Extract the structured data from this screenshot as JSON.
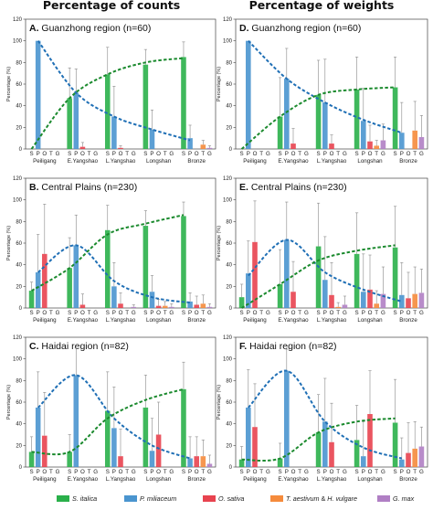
{
  "column_titles": [
    "Percentage of counts",
    "Percentage of weights"
  ],
  "crops_legend": [
    {
      "key": "S",
      "label": "S. italica",
      "color": "#2ab04a"
    },
    {
      "key": "P",
      "label": "P. miliaceum",
      "color": "#4a95cf"
    },
    {
      "key": "O",
      "label": "O. sativa",
      "color": "#e8434f"
    },
    {
      "key": "T",
      "label_parts": [
        "T. aestivum",
        " & ",
        "H. vulgare"
      ],
      "color": "#f58b3c"
    },
    {
      "key": "G",
      "label": "G. max",
      "color": "#b07fc4"
    }
  ],
  "trend_colors": {
    "P": "#1f6fb5",
    "S": "#1b8a2e"
  },
  "ylabel": "Percentage (%)",
  "crop_letters": [
    "S",
    "P",
    "O",
    "T",
    "G"
  ],
  "chart_data": [
    {
      "type": "bar",
      "letter": "A.",
      "title": "Guanzhong region (n=60)",
      "ylim": [
        0,
        120
      ],
      "yticks": [
        0,
        20,
        40,
        60,
        80,
        100,
        120
      ],
      "categories": [
        "Peiligang",
        "E.Yangshao",
        "L.Yangshao",
        "Longshan",
        "Bronze"
      ],
      "series": [
        {
          "name": "S. italica",
          "values": [
            0,
            47,
            69,
            78,
            85
          ],
          "errors": [
            0,
            28,
            25,
            14,
            14
          ]
        },
        {
          "name": "P. miliaceum",
          "values": [
            100,
            52,
            30,
            18,
            10
          ],
          "errors": [
            0,
            22,
            28,
            18,
            12
          ]
        },
        {
          "name": "O. sativa",
          "values": [
            0,
            2,
            1,
            0,
            0
          ],
          "errors": [
            0,
            4,
            2,
            0,
            0
          ]
        },
        {
          "name": "T. aestivum & H. vulgare",
          "values": [
            0,
            0,
            0,
            0,
            4
          ],
          "errors": [
            0,
            0,
            0,
            0,
            4
          ]
        },
        {
          "name": "G. max",
          "values": [
            0,
            0,
            0,
            0,
            1
          ],
          "errors": [
            0,
            0,
            0,
            0,
            2
          ]
        }
      ],
      "trends": {
        "P": [
          100,
          52,
          30,
          18,
          8
        ],
        "S": [
          0,
          47,
          69,
          80,
          84
        ]
      }
    },
    {
      "type": "bar",
      "letter": "D.",
      "title": "Guanzhong region (n=60)",
      "ylim": [
        0,
        120
      ],
      "yticks": [
        0,
        20,
        40,
        60,
        80,
        100,
        120
      ],
      "categories": [
        "Peiligang",
        "E.Yangshao",
        "L.Yangshao",
        "Longshan",
        "Bronze"
      ],
      "series": [
        {
          "name": "S. italica",
          "values": [
            0,
            30,
            50,
            55,
            57
          ],
          "errors": [
            0,
            36,
            32,
            30,
            28
          ]
        },
        {
          "name": "P. miliaceum",
          "values": [
            100,
            65,
            43,
            26,
            15
          ],
          "errors": [
            0,
            28,
            40,
            30,
            28
          ]
        },
        {
          "name": "O. sativa",
          "values": [
            0,
            5,
            5,
            7,
            0
          ],
          "errors": [
            0,
            14,
            8,
            15,
            0
          ]
        },
        {
          "name": "T. aestivum & H. vulgare",
          "values": [
            0,
            0,
            0,
            3,
            17
          ],
          "errors": [
            0,
            0,
            0,
            5,
            27
          ]
        },
        {
          "name": "G. max",
          "values": [
            0,
            0,
            0,
            8,
            11
          ],
          "errors": [
            0,
            0,
            0,
            15,
            20
          ]
        }
      ],
      "trends": {
        "P": [
          100,
          65,
          43,
          27,
          15
        ],
        "S": [
          0,
          30,
          50,
          55,
          57
        ]
      }
    },
    {
      "type": "bar",
      "letter": "B.",
      "title": "Central Plains (n=230)",
      "ylim": [
        0,
        120
      ],
      "yticks": [
        0,
        20,
        40,
        60,
        80,
        100,
        120
      ],
      "categories": [
        "Peiligang",
        "E.Yangshao",
        "L.Yangshao",
        "Longshan",
        "Bronze"
      ],
      "series": [
        {
          "name": "S. italica",
          "values": [
            16,
            37,
            72,
            76,
            85
          ],
          "errors": [
            8,
            28,
            23,
            14,
            13
          ]
        },
        {
          "name": "P. miliaceum",
          "values": [
            33,
            58,
            20,
            15,
            6
          ],
          "errors": [
            35,
            28,
            22,
            15,
            8
          ]
        },
        {
          "name": "O. sativa",
          "values": [
            50,
            3,
            4,
            2,
            3
          ],
          "errors": [
            46,
            10,
            10,
            6,
            8
          ]
        },
        {
          "name": "T. aestivum & H. vulgare",
          "values": [
            0,
            0,
            0,
            2,
            4
          ],
          "errors": [
            0,
            0,
            0,
            4,
            8
          ]
        },
        {
          "name": "G. max",
          "values": [
            0,
            0,
            1,
            1,
            1
          ],
          "errors": [
            0,
            0,
            2,
            3,
            3
          ]
        }
      ],
      "trends": {
        "P": [
          33,
          58,
          25,
          10,
          5
        ],
        "S": [
          16,
          37,
          68,
          78,
          86
        ]
      }
    },
    {
      "type": "bar",
      "letter": "E.",
      "title": "Central Plains (n=230)",
      "ylim": [
        0,
        120
      ],
      "yticks": [
        0,
        20,
        40,
        60,
        80,
        100,
        120
      ],
      "categories": [
        "Peiligang",
        "E.Yangshao",
        "L.Yangshao",
        "Longshan",
        "Bronze"
      ],
      "series": [
        {
          "name": "S. italica",
          "values": [
            10,
            22,
            57,
            50,
            56
          ],
          "errors": [
            12,
            32,
            40,
            38,
            38
          ]
        },
        {
          "name": "P. miliaceum",
          "values": [
            32,
            63,
            26,
            15,
            12
          ],
          "errors": [
            30,
            35,
            40,
            35,
            30
          ]
        },
        {
          "name": "O. sativa",
          "values": [
            61,
            15,
            12,
            17,
            9
          ],
          "errors": [
            38,
            28,
            30,
            32,
            24
          ]
        },
        {
          "name": "T. aestivum & H. vulgare",
          "values": [
            0,
            0,
            1,
            4,
            13
          ],
          "errors": [
            0,
            0,
            4,
            12,
            25
          ]
        },
        {
          "name": "G. max",
          "values": [
            0,
            0,
            3,
            13,
            14
          ],
          "errors": [
            0,
            0,
            8,
            25,
            22
          ]
        }
      ],
      "trends": {
        "P": [
          30,
          63,
          33,
          17,
          6
        ],
        "S": [
          0,
          22,
          44,
          53,
          58
        ]
      }
    },
    {
      "type": "bar",
      "letter": "C.",
      "title": "Haidai region (n=82)",
      "ylim": [
        0,
        120
      ],
      "yticks": [
        0,
        20,
        40,
        60,
        80,
        100,
        120
      ],
      "categories": [
        "Peiligang",
        "E.Yangshao",
        "L.Yangshao",
        "Longshan",
        "Bronze"
      ],
      "series": [
        {
          "name": "S. italica",
          "values": [
            14,
            14,
            52,
            55,
            72
          ],
          "errors": [
            14,
            16,
            36,
            30,
            25
          ]
        },
        {
          "name": "P. miliaceum",
          "values": [
            55,
            85,
            36,
            15,
            8
          ],
          "errors": [
            33,
            25,
            38,
            30,
            20
          ]
        },
        {
          "name": "O. sativa",
          "values": [
            29,
            0,
            10,
            30,
            10
          ],
          "errors": [
            40,
            0,
            25,
            30,
            18
          ]
        },
        {
          "name": "T. aestivum & H. vulgare",
          "values": [
            0,
            0,
            0,
            0,
            10
          ],
          "errors": [
            0,
            0,
            0,
            0,
            15
          ]
        },
        {
          "name": "G. max",
          "values": [
            0,
            0,
            0,
            0,
            3
          ],
          "errors": [
            0,
            0,
            0,
            0,
            8
          ]
        }
      ],
      "trends": {
        "P": [
          55,
          85,
          45,
          20,
          8
        ],
        "S": [
          14,
          14,
          45,
          62,
          72
        ]
      }
    },
    {
      "type": "bar",
      "letter": "F.",
      "title": "Haidai region (n=82)",
      "ylim": [
        0,
        120
      ],
      "yticks": [
        0,
        20,
        40,
        60,
        80,
        100,
        120
      ],
      "categories": [
        "Peiligang",
        "E.Yangshao",
        "L.Yangshao",
        "Longshan",
        "Bronze"
      ],
      "series": [
        {
          "name": "S. italica",
          "values": [
            7,
            8,
            32,
            25,
            41
          ],
          "errors": [
            12,
            14,
            35,
            32,
            40
          ]
        },
        {
          "name": "P. miliaceum",
          "values": [
            55,
            89,
            42,
            10,
            7
          ],
          "errors": [
            35,
            20,
            40,
            32,
            20
          ]
        },
        {
          "name": "O. sativa",
          "values": [
            37,
            0,
            23,
            49,
            13
          ],
          "errors": [
            40,
            0,
            36,
            40,
            28
          ]
        },
        {
          "name": "T. aestivum & H. vulgare",
          "values": [
            0,
            0,
            0,
            0,
            17
          ],
          "errors": [
            0,
            0,
            0,
            0,
            25
          ]
        },
        {
          "name": "G. max",
          "values": [
            0,
            0,
            0,
            0,
            19
          ],
          "errors": [
            0,
            0,
            0,
            0,
            18
          ]
        }
      ],
      "trends": {
        "P": [
          55,
          89,
          42,
          18,
          8
        ],
        "S": [
          7,
          8,
          32,
          42,
          45
        ]
      }
    }
  ]
}
